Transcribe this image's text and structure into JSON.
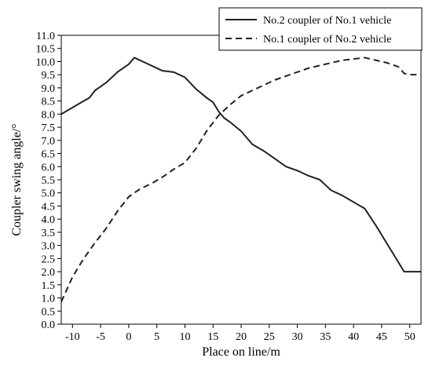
{
  "chart_data": {
    "type": "line",
    "xlabel": "Place on line/m",
    "ylabel": "Coupler swing angle/°",
    "xlim": [
      -12,
      52
    ],
    "ylim": [
      0,
      11
    ],
    "x_ticks": [
      -10,
      -5,
      0,
      5,
      10,
      15,
      20,
      25,
      30,
      35,
      40,
      45,
      50
    ],
    "y_ticks": [
      0.0,
      0.5,
      1.0,
      1.5,
      2.0,
      2.5,
      3.0,
      3.5,
      4.0,
      4.5,
      5.0,
      5.5,
      6.0,
      6.5,
      7.0,
      7.5,
      8.0,
      8.5,
      9.0,
      9.5,
      10.0,
      10.5,
      11.0
    ],
    "grid": false,
    "legend_position": "top-right",
    "series": [
      {
        "name": "No.2 coupler of No.1 vehicle",
        "style": "solid",
        "color": "#222222",
        "x": [
          -12,
          -10,
          -8,
          -7,
          -6,
          -4,
          -2,
          0,
          1,
          3,
          5,
          6,
          8,
          10,
          12,
          14,
          15,
          16,
          17,
          18,
          20,
          22,
          24,
          26,
          28,
          30,
          32,
          34,
          35,
          36,
          38,
          40,
          42,
          44,
          46,
          48,
          49,
          50,
          52
        ],
        "y": [
          8.0,
          8.25,
          8.5,
          8.62,
          8.9,
          9.2,
          9.6,
          9.9,
          10.15,
          9.95,
          9.75,
          9.65,
          9.6,
          9.4,
          8.95,
          8.6,
          8.45,
          8.1,
          7.85,
          7.7,
          7.35,
          6.85,
          6.6,
          6.3,
          6.0,
          5.85,
          5.65,
          5.5,
          5.3,
          5.1,
          4.9,
          4.65,
          4.4,
          3.75,
          3.05,
          2.35,
          2.0,
          2.0,
          2.0
        ]
      },
      {
        "name": "No.1 coupler of No.2 vehicle",
        "style": "dashed",
        "color": "#222222",
        "x": [
          -12,
          -10,
          -8,
          -6,
          -4,
          -2,
          0,
          2,
          4,
          6,
          8,
          10,
          12,
          14,
          16,
          18,
          20,
          22,
          24,
          26,
          28,
          30,
          32,
          34,
          36,
          38,
          40,
          42,
          43,
          44,
          46,
          48,
          49,
          50,
          52
        ],
        "y": [
          0.85,
          1.8,
          2.5,
          3.1,
          3.65,
          4.3,
          4.85,
          5.15,
          5.35,
          5.6,
          5.9,
          6.15,
          6.7,
          7.4,
          7.95,
          8.35,
          8.7,
          8.9,
          9.1,
          9.3,
          9.45,
          9.6,
          9.75,
          9.85,
          9.95,
          10.05,
          10.1,
          10.15,
          10.1,
          10.05,
          9.95,
          9.8,
          9.55,
          9.5,
          9.5
        ]
      }
    ]
  }
}
